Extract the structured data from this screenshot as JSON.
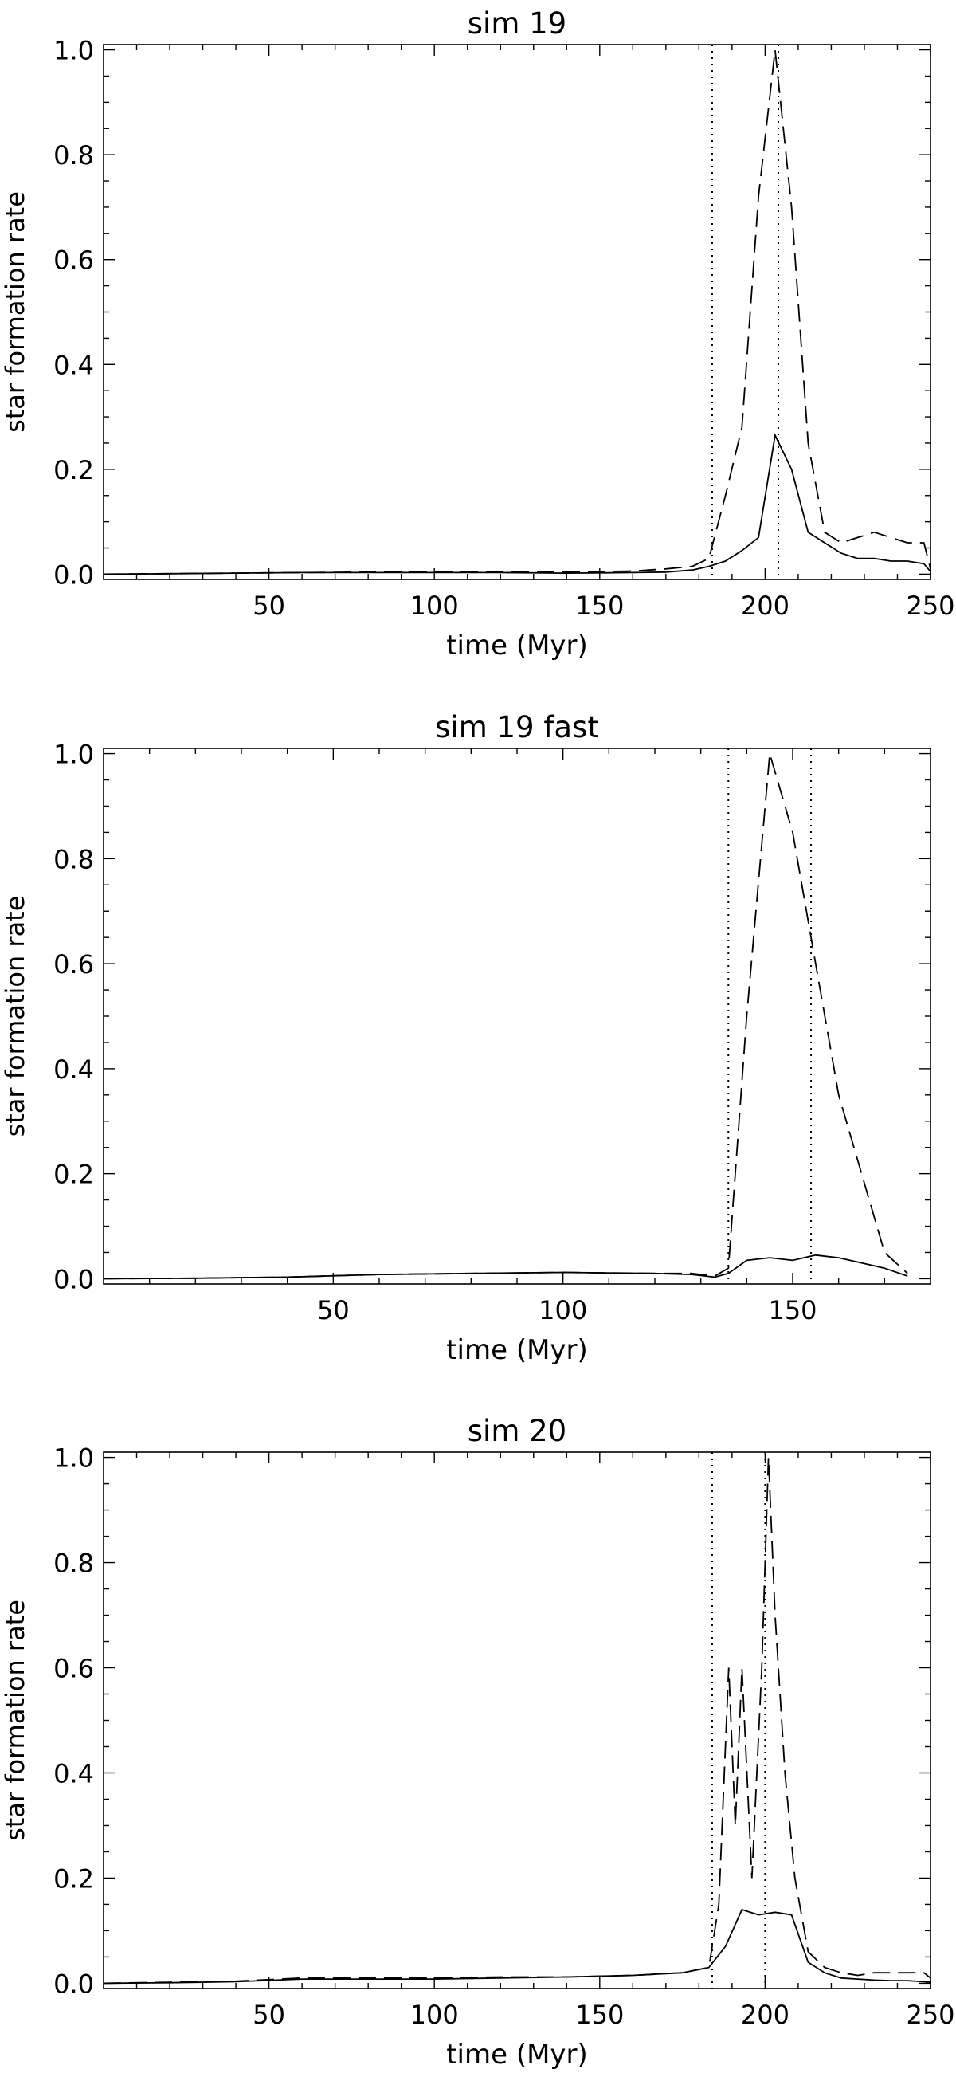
{
  "chart_data": [
    {
      "type": "line",
      "title": "sim 19",
      "xlabel": "time (Myr)",
      "ylabel": "star formation rate",
      "xlim": [
        0,
        250
      ],
      "ylim": [
        -0.01,
        1.01
      ],
      "xticks": [
        50,
        100,
        150,
        200,
        250
      ],
      "yticks": [
        "0.0",
        "0.2",
        "0.4",
        "0.6",
        "0.8",
        "1.0"
      ],
      "grid": false,
      "series": [
        {
          "style": "solid",
          "x": [
            0,
            20,
            40,
            60,
            80,
            100,
            120,
            140,
            160,
            170,
            178,
            183,
            188,
            193,
            198,
            203,
            208,
            213,
            218,
            223,
            228,
            233,
            238,
            243,
            248,
            250
          ],
          "y": [
            0,
            0.001,
            0.002,
            0.003,
            0.003,
            0.003,
            0.003,
            0.002,
            0.003,
            0.004,
            0.008,
            0.015,
            0.025,
            0.045,
            0.07,
            0.265,
            0.2,
            0.08,
            0.06,
            0.04,
            0.03,
            0.03,
            0.025,
            0.025,
            0.02,
            0.005
          ]
        },
        {
          "style": "dashed",
          "x": [
            0,
            20,
            40,
            60,
            80,
            100,
            120,
            140,
            160,
            170,
            178,
            183,
            188,
            193,
            198,
            203,
            208,
            213,
            218,
            223,
            228,
            233,
            238,
            243,
            248,
            250
          ],
          "y": [
            0,
            0.001,
            0.002,
            0.003,
            0.004,
            0.004,
            0.004,
            0.004,
            0.006,
            0.01,
            0.015,
            0.03,
            0.15,
            0.28,
            0.72,
            1.0,
            0.7,
            0.25,
            0.08,
            0.06,
            0.07,
            0.08,
            0.07,
            0.06,
            0.06,
            0.01
          ]
        }
      ],
      "vlines": [
        184,
        204
      ]
    },
    {
      "type": "line",
      "title": "sim 19 fast",
      "xlabel": "time (Myr)",
      "ylabel": "star formation rate",
      "xlim": [
        0,
        180
      ],
      "ylim": [
        -0.01,
        1.01
      ],
      "xticks": [
        50,
        100,
        150
      ],
      "yticks": [
        "0.0",
        "0.2",
        "0.4",
        "0.6",
        "0.8",
        "1.0"
      ],
      "grid": false,
      "series": [
        {
          "style": "solid",
          "x": [
            0,
            20,
            40,
            60,
            80,
            100,
            120,
            128,
            133,
            136,
            140,
            145,
            150,
            155,
            160,
            165,
            170,
            175
          ],
          "y": [
            0,
            0.001,
            0.003,
            0.008,
            0.01,
            0.012,
            0.01,
            0.008,
            0.003,
            0.01,
            0.035,
            0.04,
            0.035,
            0.045,
            0.04,
            0.03,
            0.02,
            0.005
          ]
        },
        {
          "style": "dashed",
          "x": [
            0,
            20,
            40,
            60,
            80,
            100,
            120,
            128,
            133,
            136,
            140,
            145,
            150,
            155,
            160,
            165,
            170,
            175
          ],
          "y": [
            0,
            0.001,
            0.003,
            0.008,
            0.01,
            0.012,
            0.01,
            0.01,
            0.005,
            0.02,
            0.5,
            1.0,
            0.85,
            0.6,
            0.35,
            0.2,
            0.05,
            0.01
          ]
        }
      ],
      "vlines": [
        136,
        154
      ]
    },
    {
      "type": "line",
      "title": "sim 20",
      "xlabel": "time (Myr)",
      "ylabel": "star formation rate",
      "xlim": [
        0,
        250
      ],
      "ylim": [
        -0.01,
        1.01
      ],
      "xticks": [
        50,
        100,
        150,
        200,
        250
      ],
      "yticks": [
        "0.0",
        "0.2",
        "0.4",
        "0.6",
        "0.8",
        "1.0"
      ],
      "grid": false,
      "series": [
        {
          "style": "solid",
          "x": [
            0,
            20,
            40,
            60,
            80,
            100,
            120,
            140,
            160,
            175,
            183,
            188,
            193,
            198,
            203,
            208,
            213,
            218,
            223,
            228,
            233,
            238,
            243,
            248,
            250
          ],
          "y": [
            0,
            0.001,
            0.003,
            0.008,
            0.008,
            0.008,
            0.01,
            0.012,
            0.015,
            0.02,
            0.03,
            0.07,
            0.14,
            0.13,
            0.135,
            0.13,
            0.04,
            0.02,
            0.01,
            0.008,
            0.006,
            0.005,
            0.005,
            0.003,
            0.002
          ]
        },
        {
          "style": "dashed",
          "x": [
            0,
            20,
            40,
            60,
            80,
            100,
            120,
            140,
            160,
            175,
            183,
            186,
            189,
            191,
            193,
            196,
            199,
            201,
            203,
            206,
            209,
            213,
            218,
            223,
            228,
            233,
            238,
            243,
            248,
            250
          ],
          "y": [
            0,
            0.002,
            0.004,
            0.01,
            0.01,
            0.01,
            0.012,
            0.012,
            0.015,
            0.02,
            0.03,
            0.15,
            0.6,
            0.3,
            0.6,
            0.2,
            0.6,
            1.0,
            0.7,
            0.4,
            0.2,
            0.06,
            0.03,
            0.02,
            0.015,
            0.02,
            0.02,
            0.02,
            0.02,
            0.01
          ]
        }
      ],
      "vlines": [
        184,
        200
      ]
    }
  ]
}
